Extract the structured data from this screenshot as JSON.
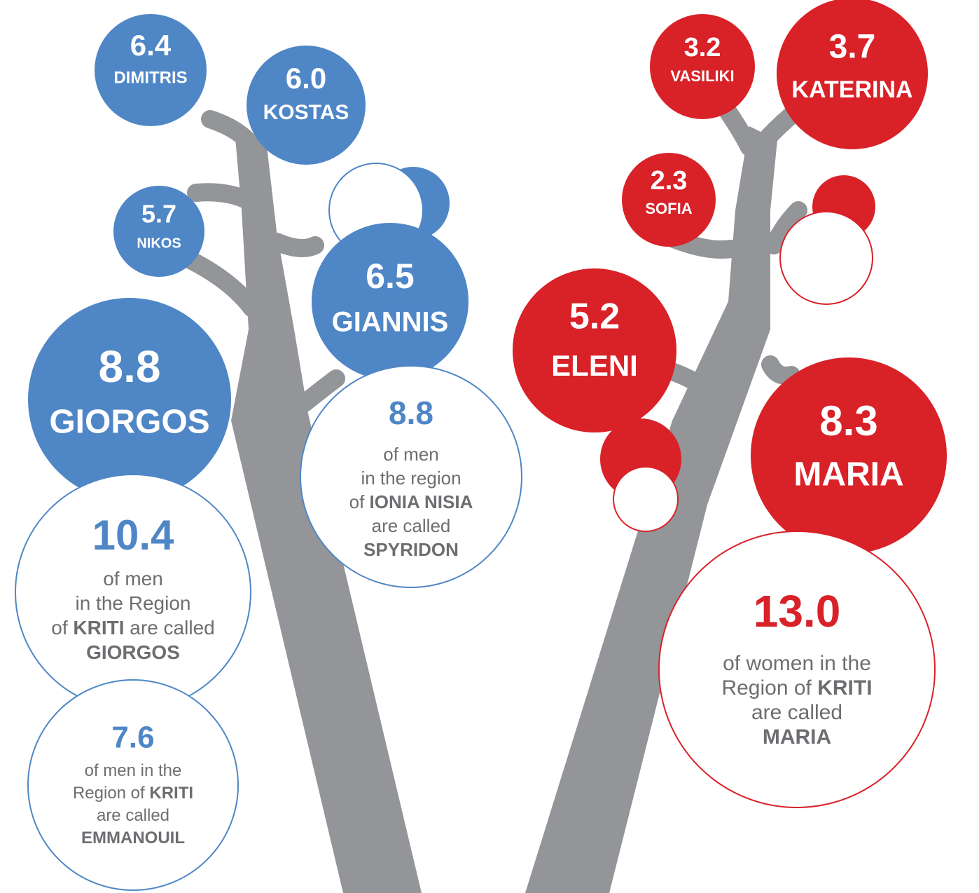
{
  "men_names": [
    {
      "value": "6.4",
      "name": "DIMITRIS"
    },
    {
      "value": "6.0",
      "name": "KOSTAS"
    },
    {
      "value": "5.7",
      "name": "NIKOS"
    },
    {
      "value": "6.5",
      "name": "GIANNIS"
    },
    {
      "value": "8.8",
      "name": "GIORGOS"
    }
  ],
  "women_names": [
    {
      "value": "3.2",
      "name": "VASILIKI"
    },
    {
      "value": "3.7",
      "name": "KATERINA"
    },
    {
      "value": "2.3",
      "name": "SOFIA"
    },
    {
      "value": "5.2",
      "name": "ELENI"
    },
    {
      "value": "8.3",
      "name": "MARIA"
    }
  ],
  "regional_facts": [
    {
      "value": "8.8",
      "lines": [
        [
          "of men"
        ],
        [
          "in the region"
        ],
        [
          "of ",
          {
            "text": "IONIA NISIA",
            "bold": true
          }
        ],
        [
          "are called"
        ],
        [
          {
            "text": "SPYRIDON",
            "bold": true
          }
        ]
      ]
    },
    {
      "value": "10.4",
      "lines": [
        [
          "of men"
        ],
        [
          "in the Region"
        ],
        [
          "of ",
          {
            "text": "KRITI",
            "bold": true
          },
          " are called"
        ],
        [
          {
            "text": "GIORGOS",
            "bold": true
          }
        ]
      ]
    },
    {
      "value": "7.6",
      "lines": [
        [
          "of men in the"
        ],
        [
          "Region of ",
          {
            "text": "KRITI",
            "bold": true
          }
        ],
        [
          "are called"
        ],
        [
          {
            "text": "EMMANOUIL",
            "bold": true
          }
        ]
      ]
    },
    {
      "value": "13.0",
      "lines": [
        [
          "of women in the"
        ],
        [
          "Region of ",
          {
            "text": "KRITI",
            "bold": true
          }
        ],
        [
          "are called"
        ],
        [
          {
            "text": "MARIA",
            "bold": true
          }
        ]
      ]
    }
  ]
}
